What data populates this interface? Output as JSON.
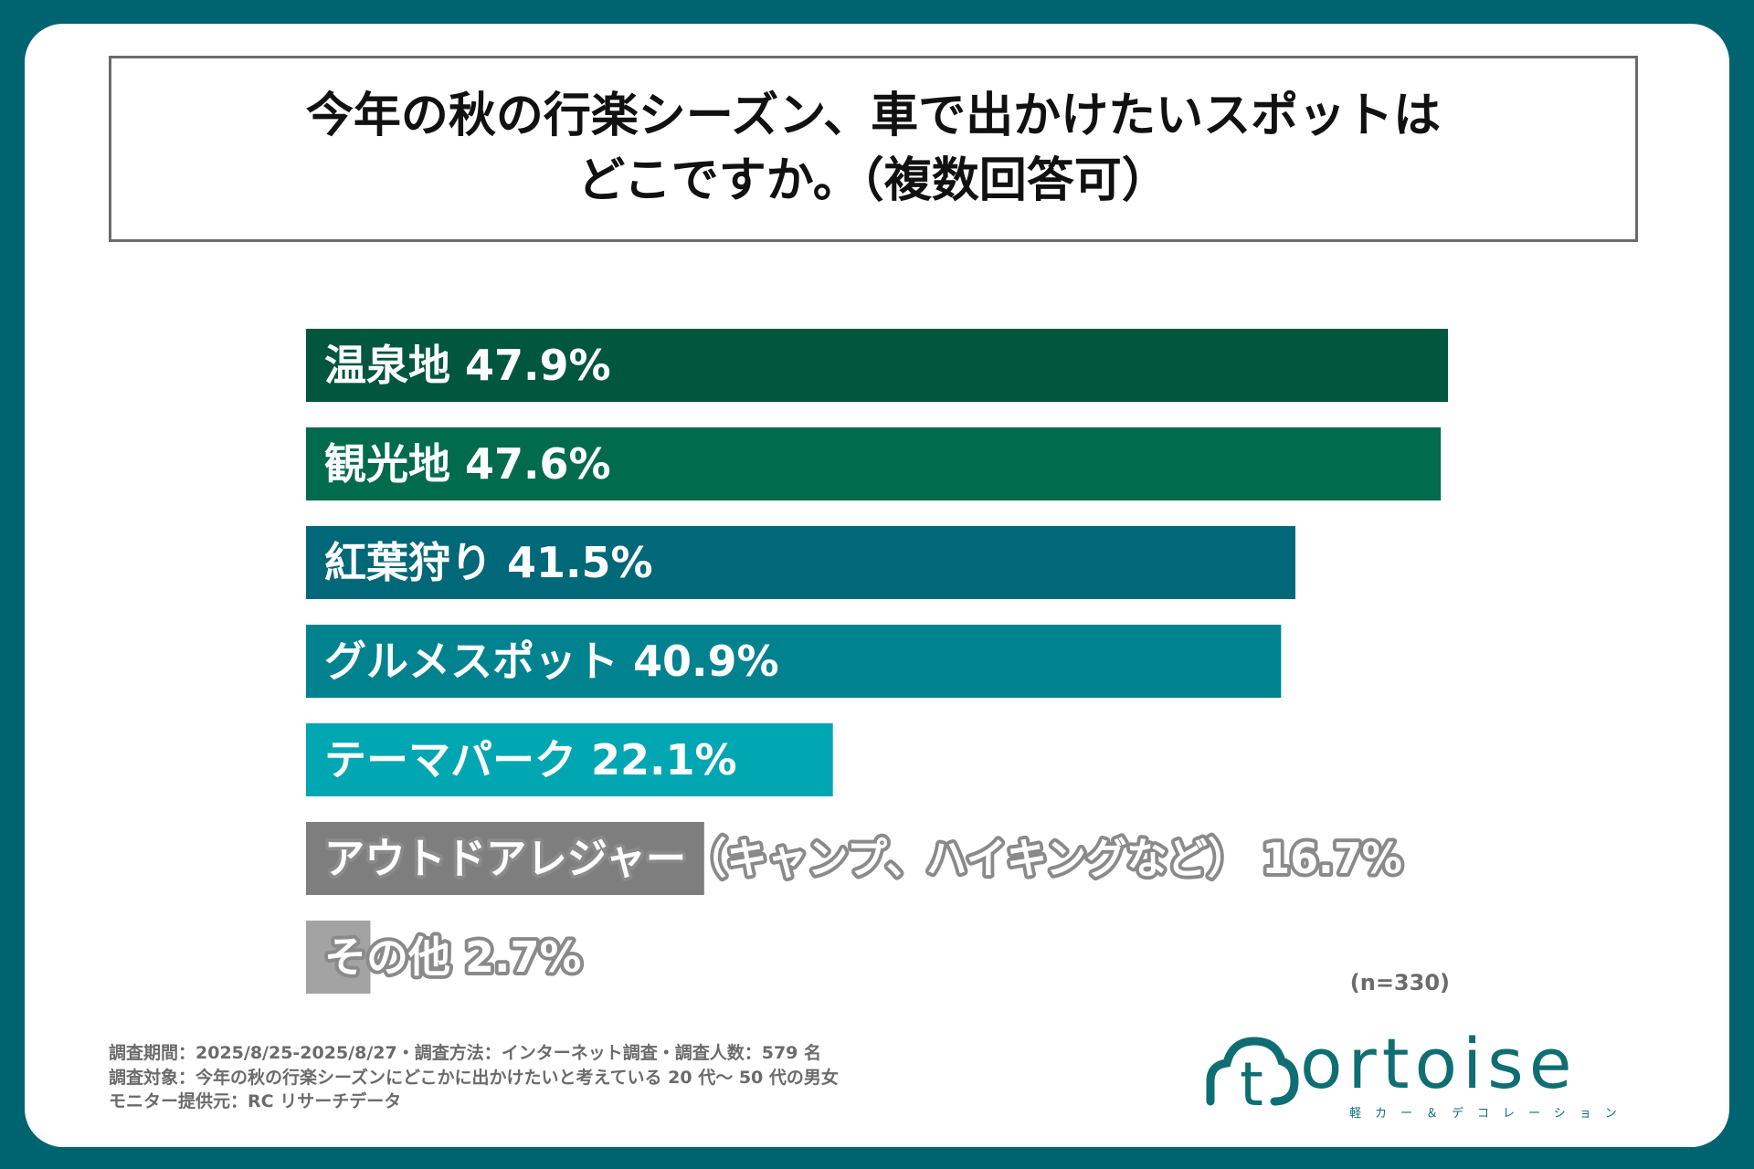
{
  "title": {
    "line1": "今年の秋の行楽シーズン、車で出かけたいスポットは",
    "line2": "どこですか。（複数回答可）"
  },
  "chart_data": {
    "type": "bar",
    "orientation": "horizontal",
    "categories": [
      "温泉地",
      "観光地",
      "紅葉狩り",
      "グルメスポット",
      "テーマパーク",
      "アウトドアレジャー（キャンプ、ハイキングなど）",
      "その他"
    ],
    "values": [
      47.9,
      47.6,
      41.5,
      40.9,
      22.1,
      16.7,
      2.7
    ],
    "value_labels": [
      "47.9%",
      "47.6%",
      "41.5%",
      "40.9%",
      "22.1%",
      "16.7%",
      "2.7%"
    ],
    "colors": [
      "#00573d",
      "#006b4d",
      "#006878",
      "#00838f",
      "#00a7b2",
      "#7e7e7e",
      "#a3a3a3"
    ],
    "xlim": [
      0,
      47.9
    ],
    "grid": false,
    "legend": "none"
  },
  "note": "(n=330)",
  "footer": {
    "line1": "調査期間：2025/8/25-2025/8/27・調査方法：インターネット調査・調査人数：579 名",
    "line2": "調査対象：今年の秋の行楽シーズンにどこかに出かけたいと考えている 20 代〜 50 代の男女",
    "line3": "モニター提供元：RC リサーチデータ"
  },
  "logo": {
    "word": "ortoise",
    "mark_letter": "t",
    "tagline": "軽カー＆デコレーション"
  }
}
